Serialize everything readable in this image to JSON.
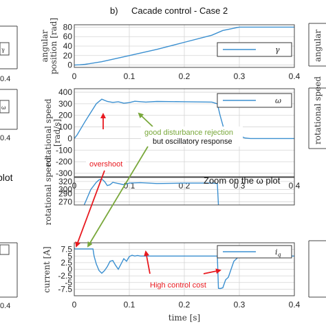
{
  "header": {
    "label": "b)",
    "title": "Cacade control - Case 2"
  },
  "colors": {
    "line": "#3a8fd0",
    "grid": "#d4d4d4",
    "axis": "#444444",
    "red": "#e8191f",
    "green": "#79a83b"
  },
  "chart_data": [
    {
      "type": "line",
      "id": "angular",
      "ylabel": "angular position [rad]",
      "ylabel_lines": [
        "angular",
        "position [rad]"
      ],
      "xlim": [
        0,
        0.4
      ],
      "ylim": [
        -5,
        85
      ],
      "yticks": [
        "0",
        "20",
        "40",
        "60",
        "80"
      ],
      "ytick_values": [
        0,
        20,
        40,
        60,
        80
      ],
      "xticks": [
        "0",
        "0.1",
        "0.2",
        "0.3",
        "0.4"
      ],
      "xtick_values": [
        0,
        0.1,
        0.2,
        0.3,
        0.4
      ],
      "grid": true,
      "legend": "right",
      "series": [
        {
          "name": "γ",
          "x": [
            0,
            0.01,
            0.02,
            0.05,
            0.1,
            0.15,
            0.2,
            0.25,
            0.27,
            0.3,
            0.4
          ],
          "y": [
            0,
            0.5,
            1.5,
            7,
            20,
            33,
            48,
            63,
            73,
            80,
            80
          ]
        }
      ]
    },
    {
      "type": "line",
      "id": "omega",
      "ylabel": "rotational speed [rad/s]",
      "ylabel_lines": [
        "rotational speed",
        "[rad/s]"
      ],
      "xlim": [
        0,
        0.4
      ],
      "ylim": [
        -330,
        430
      ],
      "yticks": [
        "400",
        "300",
        "200",
        "100",
        "0",
        "-100",
        "-200",
        "-300"
      ],
      "ytick_values": [
        400,
        300,
        200,
        100,
        0,
        -100,
        -200,
        -300
      ],
      "xticks": [
        "0",
        "0.1",
        "0.2",
        "0.3",
        "0.4"
      ],
      "xtick_values": [
        0,
        0.1,
        0.2,
        0.3,
        0.4
      ],
      "grid": true,
      "legend": "top-right",
      "series": [
        {
          "name": "ω",
          "x": [
            0,
            0.005,
            0.02,
            0.04,
            0.05,
            0.06,
            0.07,
            0.08,
            0.09,
            0.1,
            0.11,
            0.13,
            0.15,
            0.2,
            0.25,
            0.26,
            0.265,
            0.275,
            0.285,
            0.295,
            0.3,
            0.31,
            0.32,
            0.4
          ],
          "y": [
            0,
            30,
            150,
            300,
            340,
            320,
            312,
            318,
            305,
            310,
            322,
            315,
            320,
            318,
            315,
            300,
            200,
            30,
            0,
            10,
            25,
            5,
            0,
            0
          ]
        }
      ],
      "annotations": [
        {
          "text": "overshoot",
          "color": "red"
        },
        {
          "text": "good disturbance rejection",
          "color": "green"
        },
        {
          "text": "but oscillatory response",
          "color": "black"
        }
      ]
    },
    {
      "type": "line",
      "id": "zoom",
      "title": "Zoom on the ω plot",
      "ylabel": "rotational speed",
      "xlim": [
        0,
        0.4
      ],
      "ylim": [
        262,
        330
      ],
      "yticks": [
        "320",
        "300",
        "290",
        "270"
      ],
      "ytick_values": [
        320,
        300,
        290,
        270
      ],
      "xtick_values": [
        0,
        0.1,
        0.2,
        0.3,
        0.4
      ],
      "grid": true,
      "series": [
        {
          "name": "ω",
          "x": [
            0.018,
            0.03,
            0.04,
            0.045,
            0.05,
            0.055,
            0.06,
            0.065,
            0.07,
            0.08,
            0.09,
            0.1,
            0.12,
            0.15,
            0.2,
            0.25,
            0.26,
            0.262
          ],
          "y": [
            262,
            300,
            318,
            324,
            326,
            320,
            310,
            312,
            318,
            315,
            312,
            316,
            317,
            315,
            316,
            316,
            315,
            262
          ]
        }
      ]
    },
    {
      "type": "line",
      "id": "current",
      "ylabel": "current [A]",
      "xlabel": "time [s]",
      "xlim": [
        0,
        0.4
      ],
      "ylim": [
        -10,
        10
      ],
      "yticks": [
        "7.5",
        "5",
        "2.5",
        "0",
        "-2.5",
        "-5",
        "-7.5"
      ],
      "ytick_values": [
        7.5,
        5,
        2.5,
        0,
        -2.5,
        -5,
        -7.5
      ],
      "xticks": [
        "0",
        "0.1",
        "0.2",
        "0.3",
        "0.4"
      ],
      "xtick_values": [
        0,
        0.1,
        0.2,
        0.3,
        0.4
      ],
      "grid": true,
      "legend": "top-right",
      "series": [
        {
          "name": "i_q",
          "x": [
            0,
            0.001,
            0.034,
            0.036,
            0.04,
            0.045,
            0.05,
            0.055,
            0.06,
            0.065,
            0.07,
            0.075,
            0.08,
            0.085,
            0.09,
            0.095,
            0.1,
            0.105,
            0.11,
            0.115,
            0.12,
            0.25,
            0.255,
            0.26,
            0.262,
            0.265,
            0.27,
            0.275,
            0.28,
            0.285,
            0.29,
            0.295,
            0.3,
            0.31,
            0.4
          ],
          "y": [
            8,
            7.7,
            7.7,
            5,
            2,
            -0.5,
            -1.5,
            -0.5,
            1,
            3,
            3.3,
            1.5,
            0,
            2,
            4,
            3,
            4.8,
            5.3,
            5,
            5.2,
            5,
            5,
            5,
            5,
            -7.2,
            -7.3,
            -7,
            -4,
            -3,
            0,
            3,
            4,
            5,
            5,
            5
          ]
        }
      ],
      "annotations": [
        {
          "text": "High control cost",
          "color": "red"
        }
      ]
    }
  ]
}
